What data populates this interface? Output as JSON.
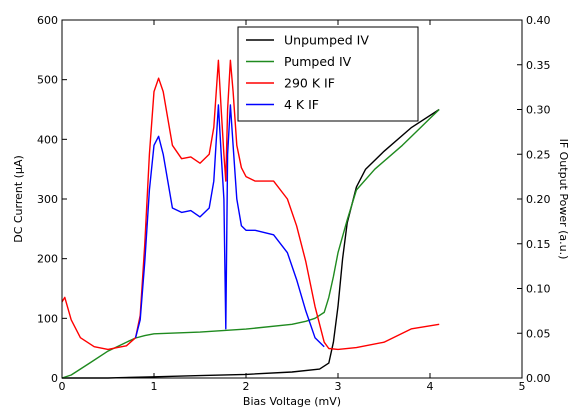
{
  "chart_data": {
    "type": "line",
    "xlabel": "Bias Voltage (mV)",
    "ylabel": "DC Current (μA)",
    "ylabel_right": "IF Output Power (a.u.)",
    "xlim": [
      0,
      5
    ],
    "ylim": [
      0,
      600
    ],
    "ylim_right": [
      0,
      0.4
    ],
    "xticks": [
      "0",
      "1",
      "2",
      "3",
      "4",
      "5"
    ],
    "yticks": [
      "0",
      "100",
      "200",
      "300",
      "400",
      "500",
      "600"
    ],
    "yticks_right": [
      "0.00",
      "0.05",
      "0.10",
      "0.15",
      "0.20",
      "0.25",
      "0.30",
      "0.35",
      "0.40"
    ],
    "grid": false,
    "legend": "top-right",
    "series": [
      {
        "name": "Unpumped IV",
        "axis": "left",
        "color": "#000000",
        "x": [
          0,
          0.5,
          1.0,
          1.5,
          2.0,
          2.5,
          2.8,
          2.9,
          2.95,
          3.0,
          3.05,
          3.1,
          3.2,
          3.3,
          3.5,
          3.8,
          4.1
        ],
        "y": [
          0,
          0,
          2,
          4,
          6,
          10,
          15,
          25,
          60,
          120,
          200,
          260,
          320,
          350,
          380,
          420,
          450
        ]
      },
      {
        "name": "Pumped IV",
        "axis": "left",
        "color": "#1f8a1f",
        "x": [
          0,
          0.1,
          0.3,
          0.5,
          0.7,
          0.8,
          0.9,
          1.0,
          1.5,
          2.0,
          2.5,
          2.65,
          2.75,
          2.85,
          2.9,
          2.95,
          3.0,
          3.1,
          3.2,
          3.4,
          3.7,
          4.0,
          4.1
        ],
        "y": [
          0,
          5,
          25,
          45,
          60,
          67,
          71,
          74,
          77,
          82,
          90,
          95,
          100,
          110,
          135,
          170,
          210,
          265,
          315,
          350,
          390,
          435,
          450
        ]
      },
      {
        "name": "290 K IF",
        "axis": "right",
        "color": "#ff0000",
        "x": [
          0,
          0.03,
          0.1,
          0.2,
          0.35,
          0.5,
          0.6,
          0.7,
          0.8,
          0.85,
          0.9,
          0.95,
          1.0,
          1.05,
          1.1,
          1.15,
          1.2,
          1.3,
          1.4,
          1.5,
          1.6,
          1.65,
          1.7,
          1.73,
          1.76,
          1.78,
          1.8,
          1.83,
          1.86,
          1.9,
          1.95,
          2.0,
          2.1,
          2.3,
          2.45,
          2.55,
          2.65,
          2.75,
          2.85,
          2.9,
          3.0,
          3.2,
          3.5,
          3.8,
          4.1
        ],
        "y": [
          0.085,
          0.09,
          0.065,
          0.045,
          0.035,
          0.032,
          0.034,
          0.036,
          0.045,
          0.07,
          0.15,
          0.25,
          0.32,
          0.335,
          0.32,
          0.29,
          0.26,
          0.245,
          0.247,
          0.24,
          0.25,
          0.28,
          0.355,
          0.3,
          0.25,
          0.22,
          0.3,
          0.355,
          0.32,
          0.26,
          0.235,
          0.225,
          0.22,
          0.22,
          0.2,
          0.17,
          0.13,
          0.08,
          0.04,
          0.033,
          0.032,
          0.034,
          0.04,
          0.055,
          0.06
        ]
      },
      {
        "name": "4 K IF",
        "axis": "right",
        "color": "#0000ff",
        "x": [
          0.8,
          0.85,
          0.9,
          0.95,
          1.0,
          1.05,
          1.1,
          1.15,
          1.2,
          1.3,
          1.4,
          1.5,
          1.6,
          1.65,
          1.7,
          1.73,
          1.76,
          1.78,
          1.8,
          1.83,
          1.86,
          1.9,
          1.95,
          2.0,
          2.1,
          2.3,
          2.45,
          2.55,
          2.65,
          2.75,
          2.85
        ],
        "y": [
          0.045,
          0.065,
          0.13,
          0.21,
          0.26,
          0.27,
          0.25,
          0.22,
          0.19,
          0.185,
          0.187,
          0.18,
          0.19,
          0.22,
          0.305,
          0.25,
          0.2,
          0.055,
          0.25,
          0.305,
          0.26,
          0.2,
          0.17,
          0.165,
          0.165,
          0.16,
          0.14,
          0.11,
          0.075,
          0.045,
          0.035
        ]
      }
    ]
  }
}
